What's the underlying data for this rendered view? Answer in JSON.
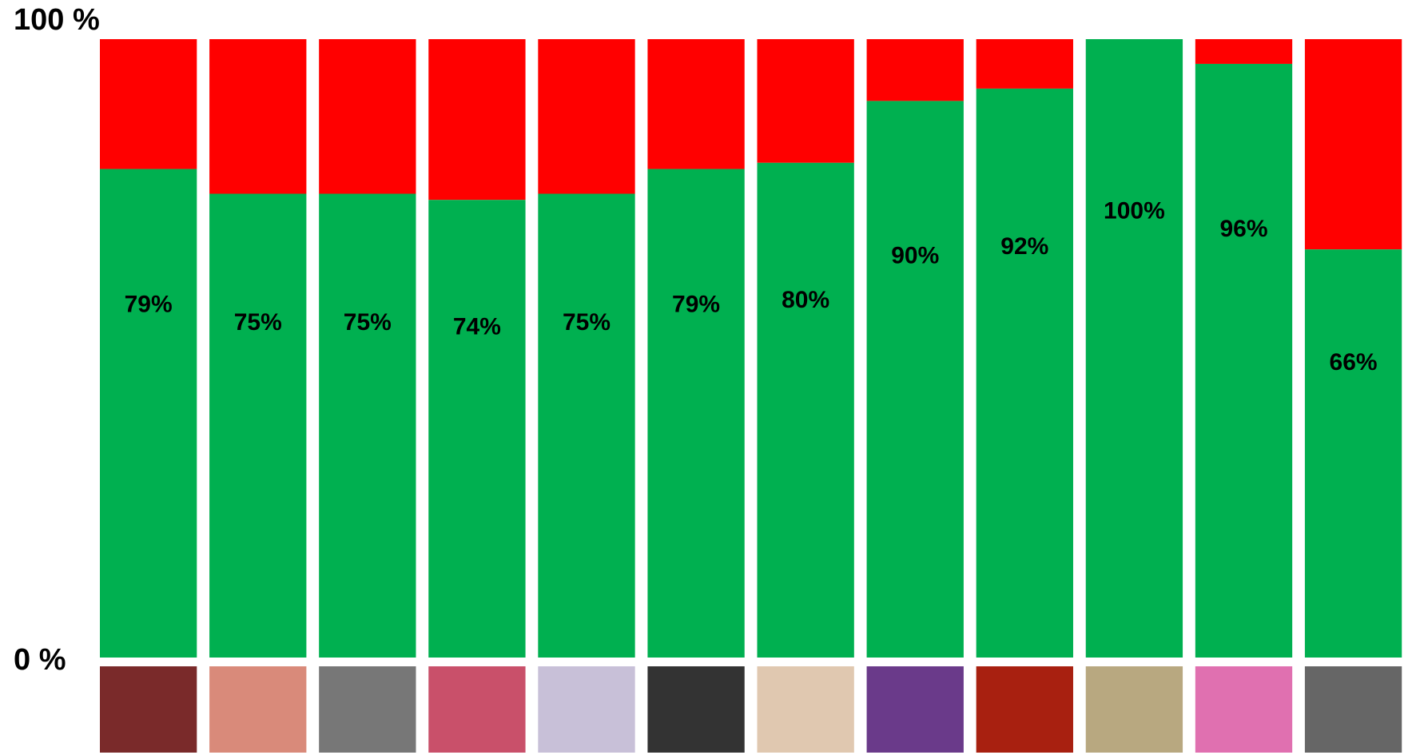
{
  "chart_data": {
    "type": "stacked-percent-bar",
    "values": [
      79,
      75,
      75,
      74,
      75,
      79,
      80,
      90,
      92,
      100,
      96,
      66
    ],
    "value_labels": [
      "79%",
      "75%",
      "75%",
      "74%",
      "75%",
      "79%",
      "80%",
      "90%",
      "92%",
      "100%",
      "96%",
      "66%"
    ],
    "color": "#00b050",
    "remainder_color": "#ff0000",
    "ylim": [
      0,
      100
    ],
    "yticks": [
      {
        "value": 0,
        "label": "0 %"
      },
      {
        "value": 100,
        "label": "100 %"
      }
    ]
  }
}
